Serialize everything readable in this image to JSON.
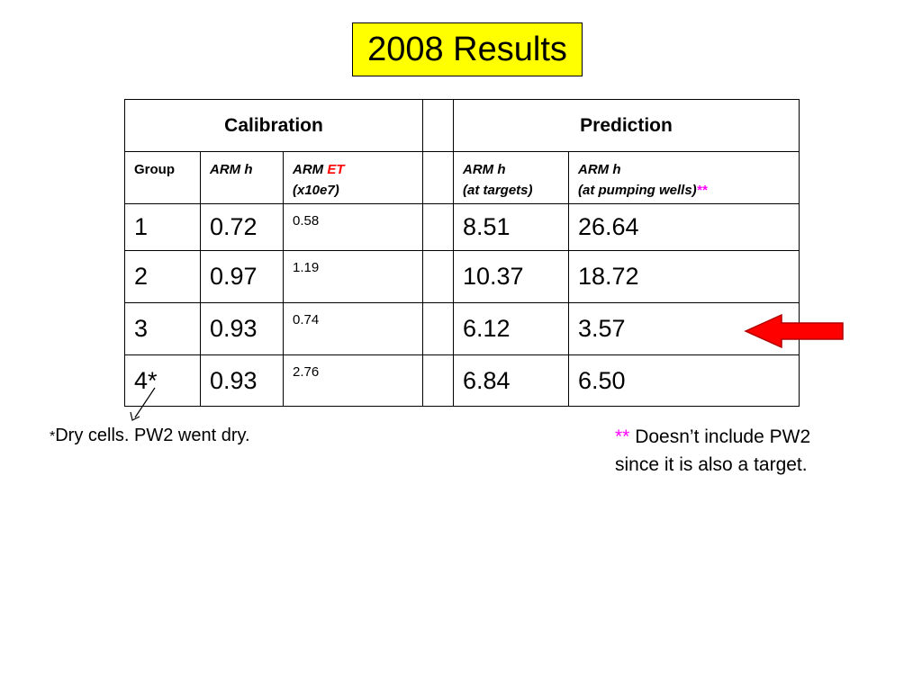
{
  "title": "2008 Results",
  "table": {
    "calibration_label": "Calibration",
    "prediction_label": "Prediction",
    "headers": {
      "group": "Group",
      "arm_h": "ARM h",
      "arm_et_prefix": "ARM ",
      "arm_et_highlight": "ET",
      "arm_et_units": "(x10e7)",
      "pred_targets_line1": "ARM h",
      "pred_targets_line2": "(at targets)",
      "pred_wells_line1": "ARM h",
      "pred_wells_line2": "(at pumping wells)",
      "pred_wells_mark": "**"
    },
    "rows": [
      {
        "group": "1",
        "arm_h": "0.72",
        "arm_et": "0.58",
        "pred_targets": "8.51",
        "pred_wells": "26.64"
      },
      {
        "group": "2",
        "arm_h": "0.97",
        "arm_et": "1.19",
        "pred_targets": "10.37",
        "pred_wells": "18.72"
      },
      {
        "group": "3",
        "arm_h": "0.93",
        "arm_et": "0.74",
        "pred_targets": "6.12",
        "pred_wells": "3.57"
      },
      {
        "group": "4*",
        "arm_h": "0.93",
        "arm_et": "2.76",
        "pred_targets": "6.84",
        "pred_wells": "6.50"
      }
    ]
  },
  "footnote_left": {
    "star": "*",
    "text": "Dry cells.  PW2 went dry."
  },
  "footnote_right": {
    "mark": "**",
    "line1": " Doesn’t include PW2",
    "line2": "since it is also a target."
  },
  "colors": {
    "title_background": "#ffff00",
    "highlight_red": "#ff0000",
    "highlight_magenta": "#ff00ff",
    "arrow_fill": "#ff0000"
  },
  "icons": {
    "highlight_arrow": "red-left-arrow",
    "pointer_arrow": "thin-pointer-arrow"
  }
}
